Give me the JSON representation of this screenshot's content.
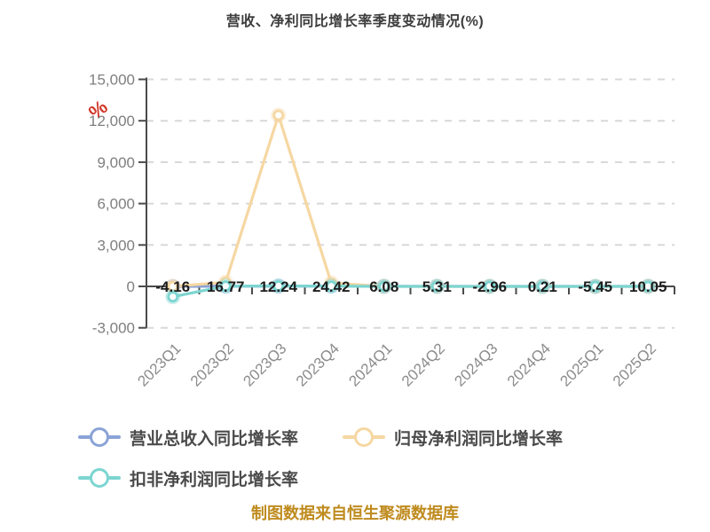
{
  "title": "营收、净利同比增长率季度变动情况(%)",
  "footer": "制图数据来自恒生聚源数据库",
  "decoration": {
    "percent_glyph": "%",
    "color": "#d23a2a"
  },
  "chart_data": {
    "type": "line",
    "title": "营收、净利同比增长率季度变动情况(%)",
    "xlabel": "",
    "ylabel": "",
    "categories": [
      "2023Q1",
      "2023Q2",
      "2023Q3",
      "2023Q4",
      "2024Q1",
      "2024Q2",
      "2024Q3",
      "2024Q4",
      "2025Q1",
      "2025Q2"
    ],
    "y_axis": {
      "min": -3000,
      "max": 15000,
      "tick_values": [
        15000,
        12000,
        9000,
        6000,
        3000,
        0,
        -3000
      ],
      "tick_labels": [
        "15,000",
        "12,000",
        "9,000",
        "6,000",
        "3,000",
        "0",
        "-3,000"
      ],
      "grid_dashed": true
    },
    "legend_position": "bottom",
    "series": [
      {
        "name": "营业总收入同比增长率",
        "color": "#8ba3d6",
        "labels_visible": true,
        "values": [
          -4.16,
          16.77,
          12.24,
          24.42,
          6.08,
          5.31,
          -2.96,
          0.21,
          -5.45,
          10.05
        ]
      },
      {
        "name": "归母净利润同比增长率",
        "color": "#f6d7a2",
        "labels_visible": false,
        "estimated_from_pixels": true,
        "values": [
          0,
          300,
          12400,
          250,
          0,
          0,
          0,
          0,
          0,
          0
        ]
      },
      {
        "name": "扣非净利润同比增长率",
        "color": "#7cd5d1",
        "labels_visible": false,
        "estimated_from_pixels": true,
        "values": [
          -750,
          20,
          30,
          20,
          0,
          0,
          0,
          0,
          0,
          0
        ]
      }
    ]
  }
}
